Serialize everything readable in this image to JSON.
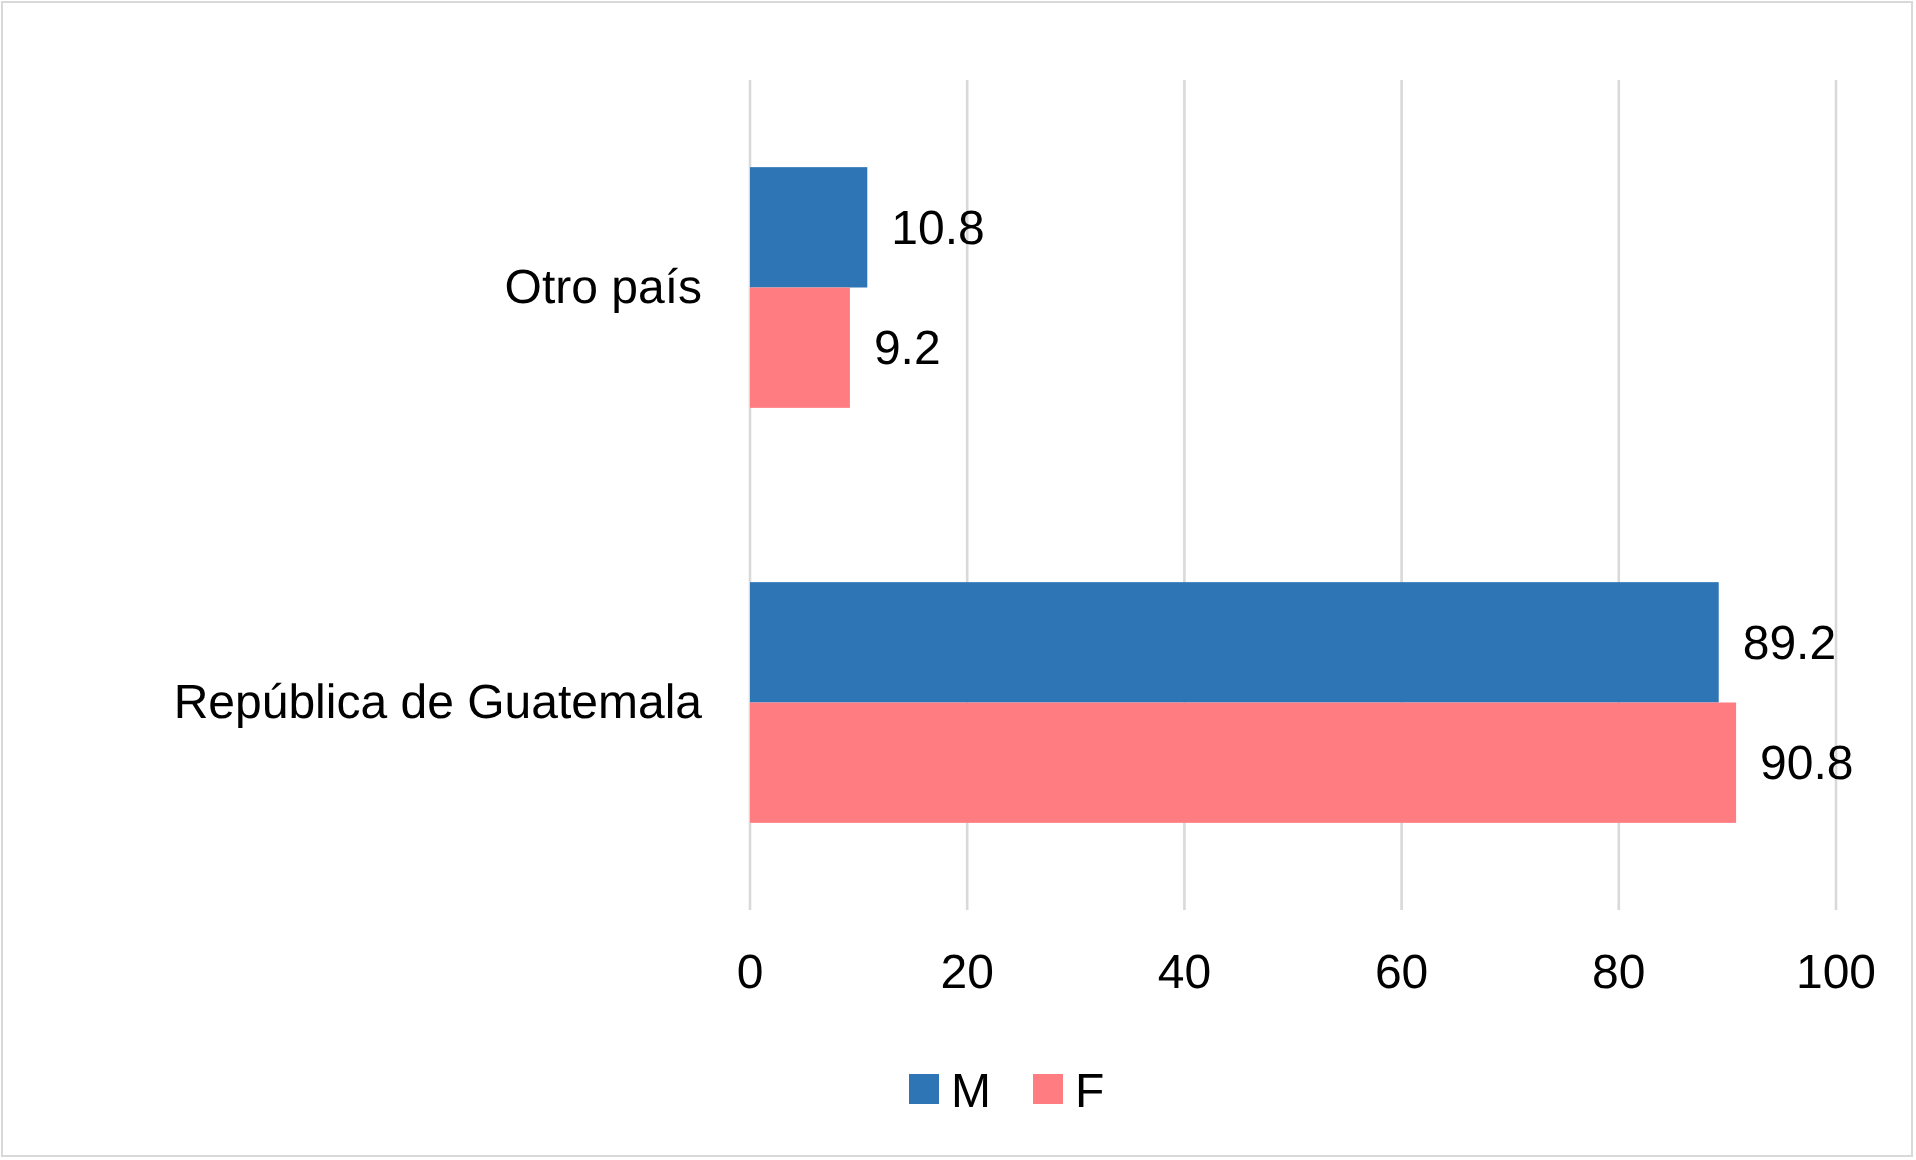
{
  "chart_data": {
    "type": "bar",
    "orientation": "horizontal",
    "categories": [
      "Otro país",
      "República de Guatemala"
    ],
    "series": [
      {
        "name": "M",
        "color": "#2e75b6",
        "values": [
          10.8,
          89.2
        ]
      },
      {
        "name": "F",
        "color": "#ff7c80",
        "values": [
          9.2,
          90.8
        ]
      }
    ],
    "xlim": [
      0,
      100
    ],
    "xticks": [
      0,
      20,
      40,
      60,
      80,
      100
    ],
    "grid": "x",
    "legend": "bottom",
    "data_labels": true
  }
}
